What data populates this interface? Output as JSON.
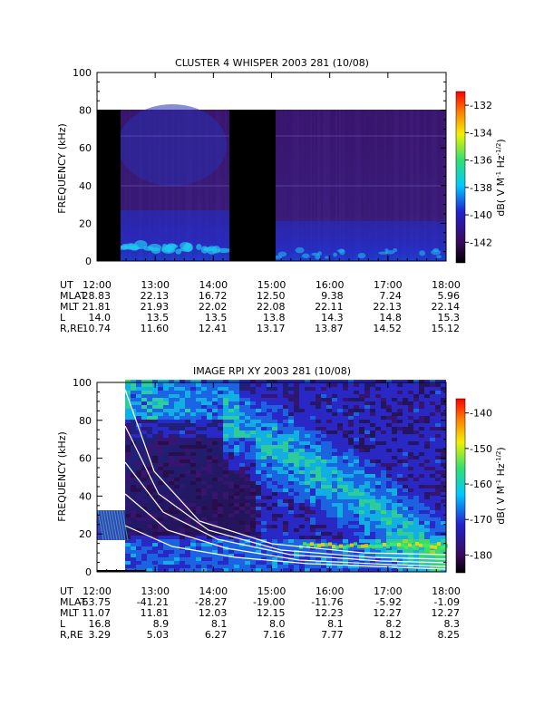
{
  "chart_data": [
    {
      "type": "heatmap",
      "title": "CLUSTER 4 WHISPER 2003 281 (10/08)",
      "ylabel": "FREQUENCY (kHz)",
      "ylim": [
        0,
        100
      ],
      "y_ticks": [
        "0",
        "20",
        "40",
        "60",
        "80",
        "100"
      ],
      "x_ticks": [
        "12:00",
        "13:00",
        "14:00",
        "15:00",
        "16:00",
        "17:00",
        "18:00"
      ],
      "xlim": [
        "12:00",
        "18:00"
      ],
      "data_freq_max_khz": 80,
      "data_gaps": [
        [
          "12:00",
          "12:25"
        ],
        [
          "14:16",
          "15:05"
        ]
      ],
      "colorbar": {
        "label": "dB( V M",
        "label_sup1": "-1",
        "label_mid": " Hz",
        "label_sup2": "-1/2",
        "label_end": ")",
        "ticks": [
          "-132",
          "-134",
          "-136",
          "-138",
          "-140",
          "-142"
        ],
        "range": [
          -143.5,
          -131
        ]
      },
      "ephemeris": [
        {
          "name": "UT",
          "values": [
            "12:00",
            "13:00",
            "14:00",
            "15:00",
            "16:00",
            "17:00",
            "18:00"
          ]
        },
        {
          "name": "MLAT",
          "values": [
            "28.83",
            "22.13",
            "16.72",
            "12.50",
            "9.38",
            "7.24",
            "5.96"
          ]
        },
        {
          "name": "MLT",
          "values": [
            "21.81",
            "21.93",
            "22.02",
            "22.08",
            "22.11",
            "22.13",
            "22.14"
          ]
        },
        {
          "name": "L",
          "values": [
            "14.0",
            "13.5",
            "13.5",
            "13.8",
            "14.3",
            "14.8",
            "15.3"
          ]
        },
        {
          "name": "R,RE",
          "values": [
            "10.74",
            "11.60",
            "12.41",
            "13.17",
            "13.87",
            "14.52",
            "15.12"
          ]
        }
      ]
    },
    {
      "type": "heatmap",
      "title": "IMAGE RPI XY 2003 281 (10/08)",
      "ylabel": "FREQUENCY (kHz)",
      "ylim": [
        0,
        100
      ],
      "y_ticks": [
        "0",
        "20",
        "40",
        "60",
        "80",
        "100"
      ],
      "x_ticks": [
        "12:00",
        "13:00",
        "14:00",
        "15:00",
        "16:00",
        "17:00",
        "18:00"
      ],
      "xlim": [
        "12:00",
        "18:00"
      ],
      "colorbar": {
        "label": "dB( V M",
        "label_sup1": "-1",
        "label_mid": " Hz",
        "label_sup2": "-1/2",
        "label_end": ")",
        "ticks": [
          "-140",
          "-150",
          "-160",
          "-170",
          "-180"
        ],
        "range": [
          -185,
          -136
        ]
      },
      "ephemeris": [
        {
          "name": "UT",
          "values": [
            "12:00",
            "13:00",
            "14:00",
            "15:00",
            "16:00",
            "17:00",
            "18:00"
          ]
        },
        {
          "name": "MLAT",
          "values": [
            "-63.75",
            "-41.21",
            "-28.27",
            "-19.00",
            "-11.76",
            "-5.92",
            "-1.09"
          ]
        },
        {
          "name": "MLT",
          "values": [
            "11.07",
            "11.81",
            "12.03",
            "12.15",
            "12.23",
            "12.27",
            "12.27"
          ]
        },
        {
          "name": "L",
          "values": [
            "16.8",
            "8.9",
            "8.1",
            "8.0",
            "8.1",
            "8.2",
            "8.3"
          ]
        },
        {
          "name": "R,RE",
          "values": [
            "3.29",
            "5.03",
            "6.27",
            "7.16",
            "7.77",
            "8.12",
            "8.25"
          ]
        }
      ]
    }
  ]
}
